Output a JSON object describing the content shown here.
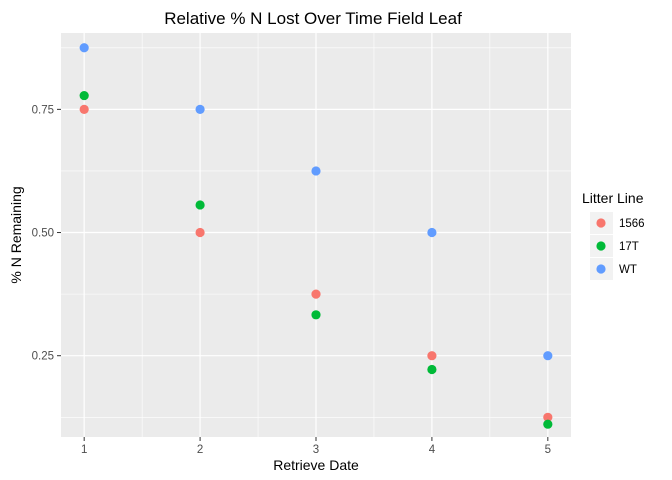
{
  "chart_data": {
    "type": "scatter",
    "title": "Relative % N Lost Over Time Field Leaf",
    "xlabel": "Retrieve Date",
    "ylabel": "% N Remaining",
    "xlim": [
      0.8,
      5.2
    ],
    "ylim": [
      0.085,
      0.905
    ],
    "x_ticks": [
      1,
      2,
      3,
      4,
      5
    ],
    "x_tick_labels": [
      "1",
      "2",
      "3",
      "4",
      "5"
    ],
    "y_ticks": [
      0.25,
      0.5,
      0.75
    ],
    "y_tick_labels": [
      "0.25",
      "0.50",
      "0.75"
    ],
    "y_minor_ticks": [
      0.125,
      0.375,
      0.625,
      0.875
    ],
    "grid": true,
    "legend": {
      "title": "Litter Line",
      "position": "right"
    },
    "series": [
      {
        "name": "1566",
        "color": "#F8766D",
        "x": [
          1,
          2,
          3,
          4,
          5
        ],
        "y": [
          0.75,
          0.5,
          0.375,
          0.25,
          0.125
        ]
      },
      {
        "name": "17T",
        "color": "#00BA38",
        "x": [
          1,
          2,
          3,
          4,
          5
        ],
        "y": [
          0.778,
          0.556,
          0.333,
          0.222,
          0.111
        ]
      },
      {
        "name": "WT",
        "color": "#619CFF",
        "x": [
          1,
          2,
          3,
          4,
          5
        ],
        "y": [
          0.875,
          0.75,
          0.625,
          0.5,
          0.25
        ]
      }
    ]
  }
}
